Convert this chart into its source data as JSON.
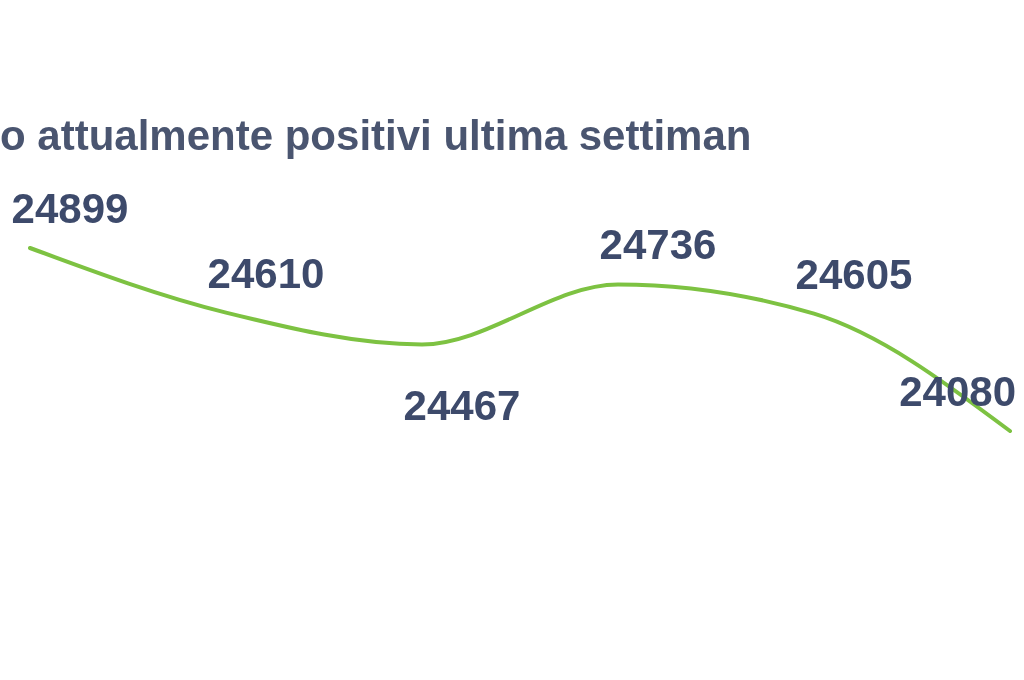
{
  "chart_data": {
    "type": "line",
    "title": "o attualmente positivi ultima settiman",
    "categories": [
      null,
      null,
      null,
      null,
      null,
      null
    ],
    "series": [
      {
        "color": "#7dc242",
        "values": [
          24899,
          24610,
          24467,
          24736,
          24605,
          24080
        ]
      }
    ],
    "data_labels": true,
    "marker": "none"
  }
}
